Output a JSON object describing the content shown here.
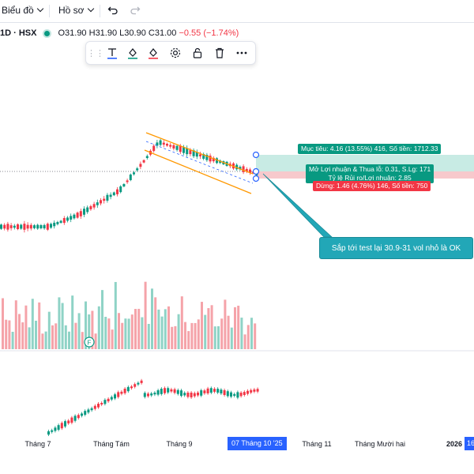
{
  "header": {
    "chart_menu": "Biểu đồ",
    "profile_menu": "Hồ sơ",
    "undo_icon": "undo-icon",
    "redo_icon": "redo-icon"
  },
  "legend": {
    "symbol": "1D · HSX",
    "status_color": "#089981",
    "open": "O31.90",
    "high": "H31.90",
    "low": "L30.90",
    "close": "C31.00",
    "change": "−0.55 (−1.74%)"
  },
  "drawing_toolbar": {
    "tools": [
      "drag-handle-icon",
      "text-icon",
      "fill-color-icon",
      "line-color-icon",
      "settings-icon",
      "lock-icon",
      "delete-icon",
      "more-icon"
    ]
  },
  "position_tool": {
    "target": "Mục tiêu: 4.16 (13.55%) 416, Số tiền: 1712.33",
    "open_pl": "Mở Lợi nhuận & Thua lỗ: 0.31, S.Lg: 171",
    "risk_reward": "Tỷ lệ Rủi ro/Lợi nhuận: 2.85",
    "stop": "Dừng: 1.46 (4.76%) 146, Số tiền: 750",
    "profit_color": "#089981",
    "loss_color": "#f23645"
  },
  "callout": {
    "text": "Sắp tới test lại 30.9-31 vol nhỏ là OK"
  },
  "volume_event_badge": "F",
  "time_axis": {
    "labels": [
      "Tháng 7",
      "Tháng Tám",
      "Tháng 9",
      "Tháng 11",
      "Tháng Mười hai",
      "2026"
    ],
    "current": "07 Tháng 10 '25",
    "right_edge": "16"
  },
  "colors": {
    "up": "#089981",
    "down": "#f23645",
    "channel": "#ff9800",
    "accent": "#2962ff"
  }
}
